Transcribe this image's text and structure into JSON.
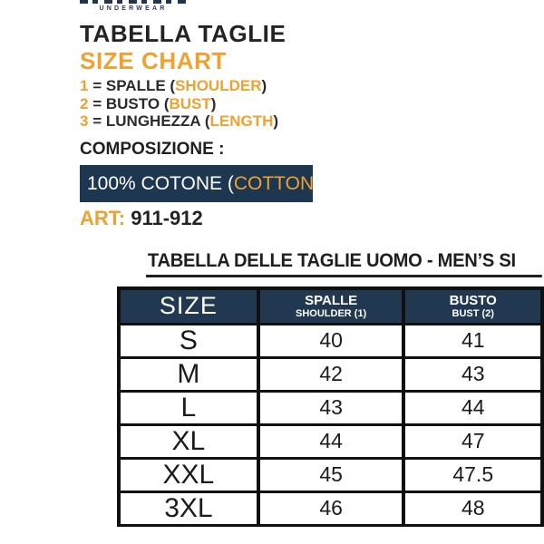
{
  "brand": {
    "underwear_label": "UNDERWEAR"
  },
  "header": {
    "title_it": "TABELLA TAGLIE",
    "title_en": "SIZE CHART"
  },
  "legend_syntax": {
    "equals": "=",
    "open": "(",
    "close": ")"
  },
  "legend": [
    {
      "num": "1",
      "it": "SPALLE",
      "en": "SHOULDER"
    },
    {
      "num": "2",
      "it": "BUSTO",
      "en": "BUST"
    },
    {
      "num": "3",
      "it": "LUNGHEZZA",
      "en": "LENGTH"
    }
  ],
  "composition": {
    "label": "COMPOSIZIONE :",
    "value_prefix": "100% COTONE (",
    "value_en": "COTTON",
    "value_suffix": ")"
  },
  "article": {
    "label": "ART:",
    "value": "911-912"
  },
  "size_table": {
    "title": "TABELLA DELLE TAGLIE UOMO - MEN’S SI",
    "columns": [
      {
        "main": "SIZE",
        "sub": ""
      },
      {
        "main": "SPALLE",
        "sub": "SHOULDER (1)"
      },
      {
        "main": "BUSTO",
        "sub": "BUST (2)"
      }
    ],
    "rows": [
      {
        "size": "S",
        "spalle": "40",
        "busto": "41"
      },
      {
        "size": "M",
        "spalle": "42",
        "busto": "43"
      },
      {
        "size": "L",
        "spalle": "43",
        "busto": "44"
      },
      {
        "size": "XL",
        "spalle": "44",
        "busto": "47"
      },
      {
        "size": "XXL",
        "spalle": "45",
        "busto": "47.5"
      },
      {
        "size": "3XL",
        "spalle": "46",
        "busto": "48"
      }
    ]
  },
  "colors": {
    "accent_orange": "#F0A231",
    "navy": "#1E3750",
    "text_dark": "#232323",
    "table_border": "#101010"
  }
}
